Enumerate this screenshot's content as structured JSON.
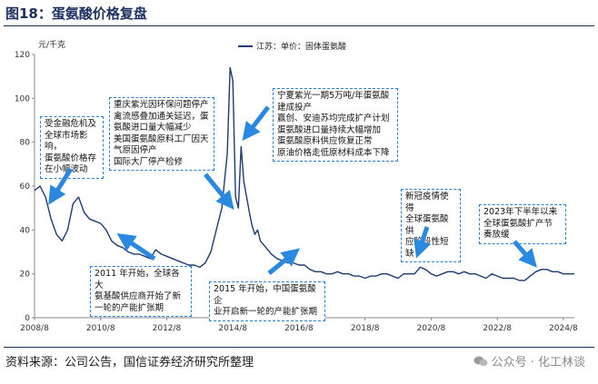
{
  "header": {
    "title": "图18：蛋氨酸价格复盘"
  },
  "footer": {
    "source": "资料来源：公司公告，国信证券经济研究所整理",
    "watermark": "公众号 · 化工林谈"
  },
  "annotations": [
    "受金融危机及\n全球市场影响，\n蛋氨酸价格存\n在小幅波动",
    "重庆紫光因环保问题停产\n禽流感叠加通关延迟，蛋\n氨酸进口量大幅减少\n美国蛋氨酸原料工厂因天\n气原因停产\n国际大厂停产检修",
    "宁夏紫光一期5万吨/年蛋氨酸\n建成投产\n赢创、安迪苏均完成扩产计划\n蛋氨酸进口量持续大幅增加\n蛋氨酸原料供应恢复正常\n原油价格走低原材料成本下降",
    "2011 年开始，全球各大\n氨基酸供应商开始了新\n一轮的产能扩张期",
    "2015 年开始，中国蛋氨酸企\n业开启新一轮的产能扩张期",
    "新冠疫情使得\n全球蛋氨酸供\n应阶段性短缺",
    "2023年下半年以来\n全球蛋氨酸扩产节\n奏放缓"
  ],
  "chart_data": {
    "type": "line",
    "title": "",
    "xlabel": "",
    "ylabel": "元/千克",
    "ylim": [
      0,
      120
    ],
    "xlim": [
      "2008-08",
      "2024-12"
    ],
    "yticks": [
      0,
      20,
      40,
      60,
      80,
      100,
      120
    ],
    "xtick_labels": [
      "2008/8",
      "2010/8",
      "2012/8",
      "2014/8",
      "2016/8",
      "2018/8",
      "2020/8",
      "2022/8",
      "2024/8"
    ],
    "grid": false,
    "legend_position": "top-center",
    "series": [
      {
        "name": "江苏：单价：固体蛋氨酸",
        "color": "#1f3b70",
        "x": [
          "2008-08",
          "2008-10",
          "2008-12",
          "2009-02",
          "2009-04",
          "2009-06",
          "2009-08",
          "2009-10",
          "2009-12",
          "2010-02",
          "2010-04",
          "2010-06",
          "2010-08",
          "2010-10",
          "2010-12",
          "2011-02",
          "2011-04",
          "2011-06",
          "2011-08",
          "2011-10",
          "2011-12",
          "2012-02",
          "2012-04",
          "2012-06",
          "2012-08",
          "2012-10",
          "2012-12",
          "2013-02",
          "2013-04",
          "2013-06",
          "2013-08",
          "2013-10",
          "2013-12",
          "2014-02",
          "2014-04",
          "2014-06",
          "2014-07",
          "2014-08",
          "2014-09",
          "2014-10",
          "2014-11",
          "2014-12",
          "2015-01",
          "2015-02",
          "2015-03",
          "2015-04",
          "2015-05",
          "2015-06",
          "2015-08",
          "2015-10",
          "2015-12",
          "2016-02",
          "2016-04",
          "2016-06",
          "2016-08",
          "2016-10",
          "2016-12",
          "2017-02",
          "2017-04",
          "2017-06",
          "2017-08",
          "2017-10",
          "2017-12",
          "2018-02",
          "2018-04",
          "2018-06",
          "2018-08",
          "2018-10",
          "2018-12",
          "2019-02",
          "2019-04",
          "2019-06",
          "2019-08",
          "2019-10",
          "2019-12",
          "2020-02",
          "2020-04",
          "2020-06",
          "2020-08",
          "2020-10",
          "2020-12",
          "2021-02",
          "2021-04",
          "2021-06",
          "2021-08",
          "2021-10",
          "2021-12",
          "2022-02",
          "2022-04",
          "2022-06",
          "2022-08",
          "2022-10",
          "2022-12",
          "2023-02",
          "2023-04",
          "2023-06",
          "2023-08",
          "2023-10",
          "2023-12",
          "2024-02",
          "2024-04",
          "2024-06",
          "2024-08",
          "2024-10",
          "2024-12"
        ],
        "values": [
          58,
          60,
          55,
          45,
          38,
          35,
          40,
          52,
          55,
          48,
          45,
          44,
          43,
          40,
          35,
          33,
          32,
          30,
          29,
          29,
          28,
          27,
          31,
          29,
          28,
          27,
          26,
          25,
          24,
          24,
          23,
          25,
          30,
          40,
          50,
          75,
          114,
          108,
          55,
          50,
          78,
          62,
          55,
          48,
          42,
          38,
          40,
          35,
          32,
          29,
          27,
          26,
          25,
          25,
          24,
          24,
          22,
          21,
          21,
          20,
          20,
          21,
          20,
          20,
          19,
          19,
          18,
          19,
          19,
          20,
          20,
          19,
          18,
          20,
          20,
          20,
          23,
          22,
          20,
          19,
          20,
          21,
          21,
          20,
          21,
          20,
          20,
          19,
          18,
          20,
          19,
          18,
          18,
          18,
          17,
          17,
          19,
          21,
          22,
          22,
          21,
          21,
          20,
          20,
          20
        ]
      }
    ]
  }
}
